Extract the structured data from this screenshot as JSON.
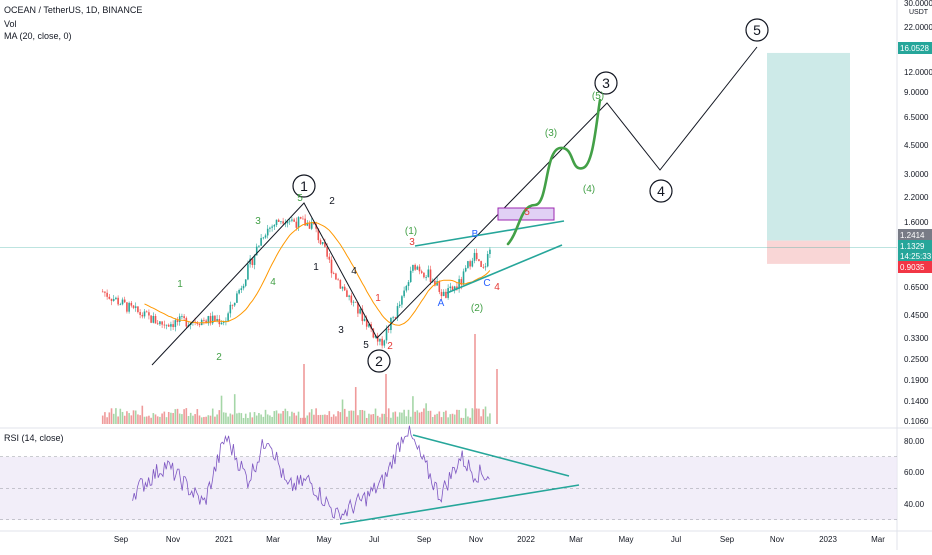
{
  "header": {
    "symbol_line": "OCEAN / TetherUS, 1D, BINANCE",
    "volume_label": "Vol",
    "ma_label": "MA (20, close, 0)",
    "rsi_label": "RSI (14, close)"
  },
  "price_axis": {
    "currency": "USDT",
    "top_partial": "30.0000",
    "ticks": [
      "22.0000",
      "12.0000",
      "9.0000",
      "6.5000",
      "4.5000",
      "3.0000",
      "2.2000",
      "1.6000",
      "0.6500",
      "0.4500",
      "0.3300",
      "0.2500",
      "0.1900",
      "0.1400",
      "0.1060"
    ]
  },
  "price_labels": {
    "target": "16.0528",
    "entry": "1.2414",
    "current": "1.1329",
    "countdown": "14:25:33",
    "stop": "0.9035"
  },
  "rsi_axis": {
    "ticks": [
      "80.00",
      "60.00",
      "40.00"
    ]
  },
  "time_axis": {
    "ticks": [
      "Sep",
      "Nov",
      "2021",
      "Mar",
      "May",
      "Jul",
      "Sep",
      "Nov",
      "2022",
      "Mar",
      "May",
      "Jul",
      "Sep",
      "Nov",
      "2023",
      "Mar"
    ]
  },
  "annotations": {
    "wave_major": [
      "1",
      "2",
      "3",
      "4",
      "5"
    ],
    "sub_waves": {
      "w1_green_a": "1",
      "w1_green_b": "2",
      "w1_green_c": "3",
      "w1_green_d": "4",
      "w1_green_e": "5",
      "w2_black_a": "2",
      "w2_black_b": "1",
      "w2_black_c": "4",
      "w2_black_d": "3",
      "w2_black_e": "5",
      "w2_red_a": "1",
      "w2_red_b": "2",
      "w3_green_1": "(1)",
      "w3_red_3": "3",
      "w3_blue_b": "B",
      "w3_blue_a": "A",
      "w3_blue_c": "C",
      "w3_red_4": "4",
      "w3_green_2": "(2)",
      "w3_red_5": "5",
      "proj_3": "(3)",
      "proj_4": "(4)",
      "proj_5": "(5)"
    }
  },
  "chart_data": [
    {
      "type": "line",
      "title": "OCEAN / TetherUS, 1D, BINANCE",
      "scale": "log",
      "x": [
        "2020-08-10",
        "2020-09-15",
        "2020-10-20",
        "2020-11-30",
        "2021-01-05",
        "2021-01-25",
        "2021-02-20",
        "2021-03-15",
        "2021-04-01",
        "2021-04-20",
        "2021-05-15",
        "2021-06-10",
        "2021-06-25",
        "2021-07-10",
        "2021-08-05",
        "2021-08-20",
        "2021-09-10",
        "2021-09-25",
        "2021-10-15",
        "2021-10-30",
        "2021-11-10",
        "2021-11-20"
      ],
      "y": [
        0.62,
        0.48,
        0.4,
        0.42,
        0.42,
        0.7,
        1.4,
        1.7,
        1.6,
        1.55,
        0.8,
        0.5,
        0.4,
        0.3,
        0.55,
        0.9,
        0.75,
        0.58,
        0.7,
        1.05,
        0.8,
        1.13
      ],
      "projection": {
        "x": [
          "2021-11-20",
          "2022-01-20",
          "2022-03-25",
          "2022-06-05",
          "2022-09-25"
        ],
        "y": [
          1.13,
          4.2,
          7.8,
          2.9,
          20.0
        ],
        "labels": [
          "",
          "(3)",
          "3",
          "4",
          "5"
        ]
      },
      "ma_period": 20,
      "position": {
        "target": 16.0528,
        "entry": 1.2414,
        "stop": 0.9035
      },
      "ylabel": "USDT"
    },
    {
      "type": "line",
      "title": "RSI (14, close)",
      "ylim": [
        30,
        90
      ],
      "band": [
        30,
        70
      ],
      "x": [
        "2020-09-15",
        "2020-10-25",
        "2020-12-10",
        "2021-01-05",
        "2021-02-01",
        "2021-02-25",
        "2021-03-20",
        "2021-04-15",
        "2021-05-20",
        "2021-06-25",
        "2021-07-15",
        "2021-08-10",
        "2021-08-20",
        "2021-09-20",
        "2021-10-15",
        "2021-10-30",
        "2021-11-20"
      ],
      "y": [
        47,
        65,
        40,
        83,
        55,
        84,
        50,
        55,
        32,
        45,
        55,
        88,
        78,
        45,
        70,
        60,
        58
      ]
    }
  ]
}
